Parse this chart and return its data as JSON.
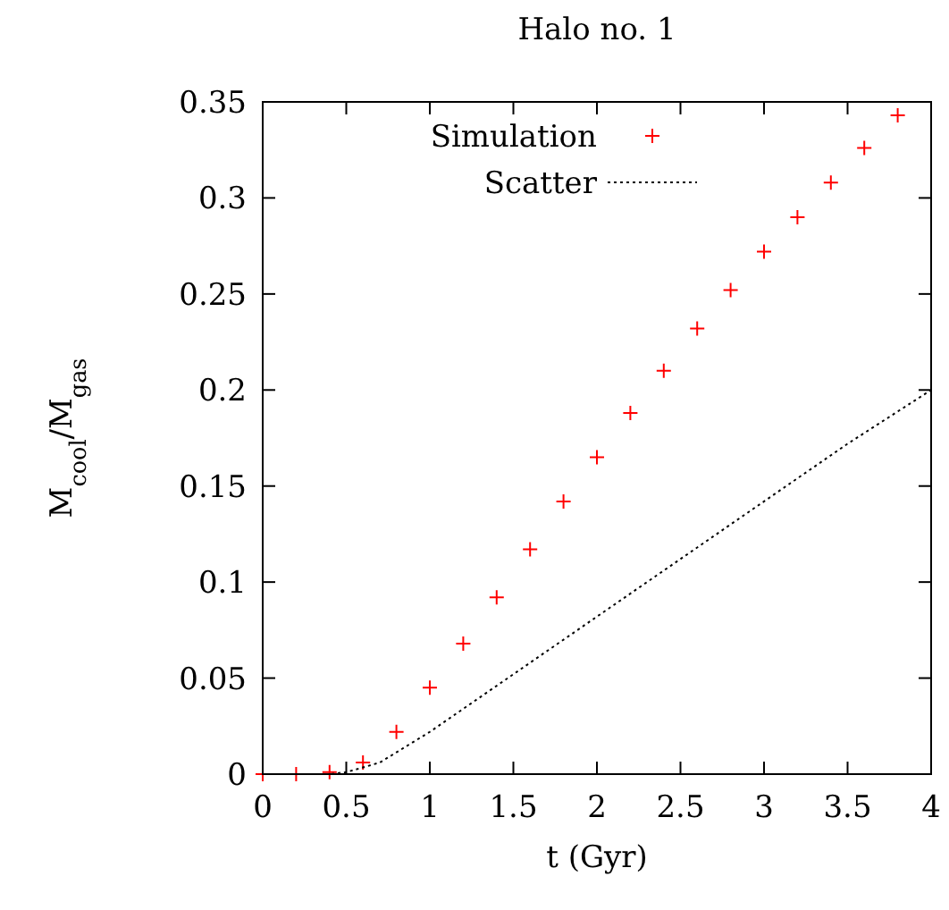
{
  "chart_data": {
    "type": "scatter",
    "title": "Halo no. 1",
    "xlabel": "t (Gyr)",
    "ylabel": "M$_{cool}$/M$_{gas}$",
    "xlim": [
      0,
      4
    ],
    "ylim": [
      0,
      0.35
    ],
    "xticks": [
      0,
      0.5,
      1,
      1.5,
      2,
      2.5,
      3,
      3.5,
      4
    ],
    "yticks": [
      0,
      0.05,
      0.1,
      0.15,
      0.2,
      0.25,
      0.3,
      0.35
    ],
    "grid": false,
    "legend": "top",
    "series": [
      {
        "name": "Simulation",
        "marker": "cross",
        "color": "#ff0000",
        "x": [
          0,
          0.2,
          0.4,
          0.6,
          0.8,
          1.0,
          1.2,
          1.4,
          1.6,
          1.8,
          2.0,
          2.2,
          2.4,
          2.6,
          2.8,
          3.0,
          3.2,
          3.4,
          3.6,
          3.8
        ],
        "values": [
          0,
          0,
          0.001,
          0.006,
          0.022,
          0.045,
          0.068,
          0.092,
          0.117,
          0.142,
          0.165,
          0.188,
          0.21,
          0.232,
          0.252,
          0.272,
          0.29,
          0.308,
          0.326,
          0.343
        ]
      },
      {
        "name": "Scatter",
        "type": "line",
        "line_style": "dotted",
        "color": "#000000",
        "x": [
          0,
          0.4,
          0.5,
          0.7,
          1.0,
          1.3,
          1.6,
          2.0,
          2.5,
          3.0,
          3.5,
          4.0
        ],
        "values": [
          0,
          0,
          0.001,
          0.006,
          0.022,
          0.04,
          0.058,
          0.082,
          0.112,
          0.142,
          0.172,
          0.2
        ]
      }
    ]
  }
}
